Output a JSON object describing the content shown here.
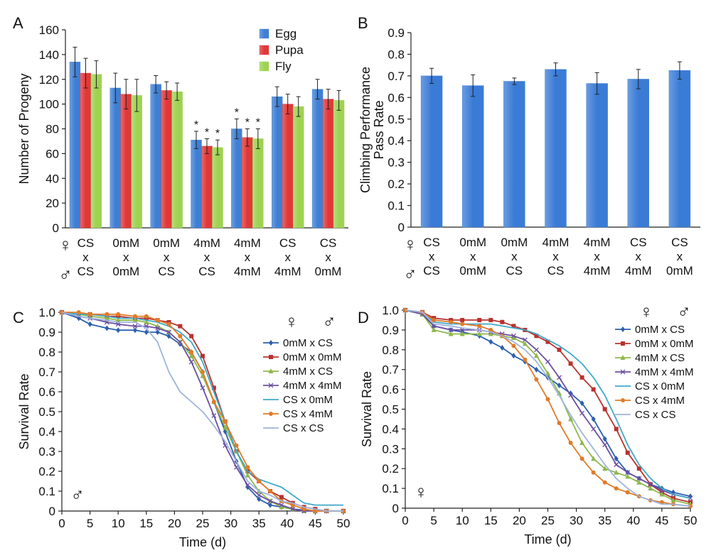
{
  "panels": {
    "A": "A",
    "B": "B",
    "C": "C",
    "D": "D"
  },
  "cross_rows": {
    "female_symbol": "♀",
    "male_symbol": "♂",
    "cross_symbol": "x"
  },
  "colors": {
    "egg": "#3f7fd3",
    "pupa": "#e03838",
    "fly": "#9fd252",
    "climb": "#3a7bd5"
  },
  "chart_data": [
    {
      "id": "A",
      "type": "bar",
      "ylabel": "Number of Progeny",
      "ylim": [
        0,
        160
      ],
      "yticks": [
        0,
        20,
        40,
        60,
        80,
        100,
        120,
        140,
        160
      ],
      "categories": [
        {
          "female": "CS",
          "male": "CS"
        },
        {
          "female": "0mM",
          "male": "0mM"
        },
        {
          "female": "0mM",
          "male": "CS"
        },
        {
          "female": "4mM",
          "male": "CS"
        },
        {
          "female": "4mM",
          "male": "4mM"
        },
        {
          "female": "CS",
          "male": "4mM"
        },
        {
          "female": "CS",
          "male": "0mM"
        }
      ],
      "series": [
        {
          "name": "Egg",
          "values": [
            134,
            113,
            116,
            71,
            80,
            106,
            112
          ],
          "errors": [
            12,
            12,
            7,
            7,
            8,
            8,
            8
          ]
        },
        {
          "name": "Pupa",
          "values": [
            125,
            108,
            111,
            66,
            73,
            100,
            104
          ],
          "errors": [
            12,
            12,
            7,
            6,
            7,
            8,
            8
          ]
        },
        {
          "name": "Fly",
          "values": [
            124,
            107,
            110,
            65,
            72,
            98,
            103
          ],
          "errors": [
            11,
            13,
            7,
            6,
            8,
            8,
            8
          ]
        }
      ],
      "significance": [
        {
          "category_index": 3,
          "series_index": 0,
          "label": "*"
        },
        {
          "category_index": 3,
          "series_index": 1,
          "label": "*"
        },
        {
          "category_index": 3,
          "series_index": 2,
          "label": "*"
        },
        {
          "category_index": 4,
          "series_index": 0,
          "label": "*"
        },
        {
          "category_index": 4,
          "series_index": 1,
          "label": "*"
        },
        {
          "category_index": 4,
          "series_index": 2,
          "label": "*"
        }
      ],
      "legend": "top-right"
    },
    {
      "id": "B",
      "type": "bar",
      "ylabel_lines": [
        "Climbing Performance",
        "Pass Rate"
      ],
      "ylim": [
        0,
        0.9
      ],
      "yticks": [
        0,
        0.1,
        0.2,
        0.3,
        0.4,
        0.5,
        0.6,
        0.7,
        0.8,
        0.9
      ],
      "ytick_labels": [
        "0",
        "0.1",
        "0.2",
        "0.3",
        "0.4",
        "0.5",
        "0.6",
        "0.7",
        "0.8",
        "0.9"
      ],
      "categories": [
        {
          "female": "CS",
          "male": "CS"
        },
        {
          "female": "0mM",
          "male": "0mM"
        },
        {
          "female": "0mM",
          "male": "CS"
        },
        {
          "female": "4mM",
          "male": "CS"
        },
        {
          "female": "4mM",
          "male": "4mM"
        },
        {
          "female": "CS",
          "male": "4mM"
        },
        {
          "female": "CS",
          "male": "0mM"
        }
      ],
      "values": [
        0.7,
        0.655,
        0.675,
        0.73,
        0.665,
        0.685,
        0.725
      ],
      "errors": [
        0.035,
        0.05,
        0.015,
        0.03,
        0.05,
        0.045,
        0.04
      ]
    },
    {
      "id": "C",
      "type": "line",
      "xlabel": "Time (d)",
      "ylabel": "Survival Rate",
      "xlim": [
        0,
        50
      ],
      "ylim": [
        0,
        1.0
      ],
      "xticks": [
        0,
        5,
        10,
        15,
        20,
        25,
        30,
        35,
        40,
        45,
        50
      ],
      "yticks": [
        0,
        0.1,
        0.2,
        0.3,
        0.4,
        0.5,
        0.6,
        0.7,
        0.8,
        0.9,
        1.0
      ],
      "ytick_labels": [
        "0",
        "0.1",
        "0.2",
        "0.3",
        "0.4",
        "0.5",
        "0.6",
        "0.7",
        "0.8",
        "0.9",
        "1.0"
      ],
      "legend_header": {
        "female": "♀",
        "male": "♂"
      },
      "sex_marker": "♂",
      "legend": "top-right",
      "series": [
        {
          "name": "0mM x CS",
          "color": "#2c5fae",
          "marker": "diamond",
          "x": [
            0,
            3,
            5,
            8,
            10,
            13,
            15,
            17,
            19,
            21,
            23,
            25,
            27,
            29,
            31,
            33,
            35,
            37,
            39,
            41,
            43,
            45,
            47,
            50
          ],
          "y": [
            1.0,
            0.97,
            0.94,
            0.92,
            0.91,
            0.91,
            0.9,
            0.9,
            0.88,
            0.84,
            0.8,
            0.7,
            0.55,
            0.4,
            0.25,
            0.12,
            0.06,
            0.03,
            0.02,
            0.01,
            0.005,
            0,
            0,
            0
          ]
        },
        {
          "name": "0mM x 0mM",
          "color": "#b8322e",
          "marker": "square",
          "x": [
            0,
            3,
            5,
            8,
            10,
            13,
            15,
            17,
            19,
            21,
            23,
            25,
            27,
            29,
            31,
            33,
            35,
            37,
            39,
            41,
            43,
            45,
            47,
            50
          ],
          "y": [
            1.0,
            0.99,
            0.99,
            0.98,
            0.98,
            0.97,
            0.97,
            0.96,
            0.95,
            0.93,
            0.88,
            0.78,
            0.62,
            0.45,
            0.3,
            0.2,
            0.15,
            0.1,
            0.07,
            0.04,
            0.02,
            0.01,
            0,
            0
          ]
        },
        {
          "name": "4mM x CS",
          "color": "#8db84a",
          "marker": "triangle",
          "x": [
            0,
            3,
            5,
            8,
            10,
            13,
            15,
            17,
            19,
            21,
            23,
            25,
            27,
            29,
            31,
            33,
            35,
            37,
            39,
            41,
            43,
            45,
            47,
            50
          ],
          "y": [
            1.0,
            0.99,
            0.98,
            0.97,
            0.96,
            0.96,
            0.95,
            0.93,
            0.9,
            0.85,
            0.78,
            0.68,
            0.55,
            0.42,
            0.3,
            0.18,
            0.1,
            0.05,
            0.02,
            0.01,
            0,
            0,
            0,
            0
          ]
        },
        {
          "name": "4mM x 4mM",
          "color": "#6a4ea0",
          "marker": "x",
          "x": [
            0,
            3,
            5,
            8,
            10,
            13,
            15,
            17,
            19,
            21,
            23,
            25,
            27,
            29,
            31,
            33,
            35,
            37,
            39,
            41,
            43,
            45,
            47,
            50
          ],
          "y": [
            1.0,
            0.98,
            0.97,
            0.95,
            0.94,
            0.93,
            0.93,
            0.92,
            0.9,
            0.85,
            0.75,
            0.62,
            0.48,
            0.33,
            0.22,
            0.13,
            0.08,
            0.05,
            0.03,
            0.01,
            0,
            0,
            0,
            0
          ]
        },
        {
          "name": "CS x 0mM",
          "color": "#3fa9c6",
          "marker": "none",
          "x": [
            0,
            3,
            5,
            8,
            10,
            13,
            15,
            17,
            19,
            21,
            23,
            25,
            27,
            29,
            31,
            33,
            35,
            37,
            39,
            41,
            43,
            45,
            47,
            50
          ],
          "y": [
            1.0,
            0.99,
            0.99,
            0.98,
            0.97,
            0.97,
            0.96,
            0.95,
            0.93,
            0.9,
            0.85,
            0.75,
            0.6,
            0.45,
            0.3,
            0.2,
            0.16,
            0.14,
            0.12,
            0.08,
            0.04,
            0.03,
            0.03,
            0.03
          ]
        },
        {
          "name": "CS x 4mM",
          "color": "#e07b29",
          "marker": "circle",
          "x": [
            0,
            3,
            5,
            8,
            10,
            13,
            15,
            17,
            19,
            21,
            23,
            25,
            27,
            29,
            31,
            33,
            35,
            37,
            39,
            41,
            43,
            45,
            47,
            50
          ],
          "y": [
            1.0,
            1.0,
            0.99,
            0.99,
            0.99,
            0.98,
            0.98,
            0.96,
            0.94,
            0.88,
            0.8,
            0.7,
            0.55,
            0.45,
            0.33,
            0.22,
            0.15,
            0.1,
            0.05,
            0.03,
            0.01,
            0,
            0,
            0
          ]
        },
        {
          "name": "CS x CS",
          "color": "#9fb4db",
          "marker": "none",
          "x": [
            0,
            3,
            5,
            8,
            10,
            13,
            15,
            17,
            19,
            21,
            23,
            25,
            27,
            29,
            31,
            33,
            35,
            37,
            39,
            41,
            43,
            45,
            47,
            50
          ],
          "y": [
            1.0,
            0.98,
            0.97,
            0.96,
            0.95,
            0.95,
            0.92,
            0.85,
            0.7,
            0.6,
            0.55,
            0.5,
            0.43,
            0.35,
            0.25,
            0.15,
            0.1,
            0.08,
            0.05,
            0.04,
            0.02,
            0.01,
            0,
            0
          ]
        }
      ]
    },
    {
      "id": "D",
      "type": "line",
      "xlabel": "Time (d)",
      "ylabel": "Survival Rate",
      "xlim": [
        0,
        50
      ],
      "ylim": [
        0,
        1.0
      ],
      "xticks": [
        0,
        5,
        10,
        15,
        20,
        25,
        30,
        35,
        40,
        45,
        50
      ],
      "yticks": [
        0,
        0.1,
        0.2,
        0.3,
        0.4,
        0.5,
        0.6,
        0.7,
        0.8,
        0.9,
        1.0
      ],
      "ytick_labels": [
        "0",
        "0.1",
        "0.2",
        "0.3",
        "0.4",
        "0.5",
        "0.6",
        "0.7",
        "0.8",
        "0.9",
        "1.0"
      ],
      "legend_header": {
        "female": "♀",
        "male": "♂"
      },
      "sex_marker": "♀",
      "legend": "top-right",
      "series": [
        {
          "name": "0mM x CS",
          "color": "#2c5fae",
          "marker": "diamond",
          "x": [
            0,
            3,
            5,
            8,
            10,
            13,
            15,
            17,
            19,
            21,
            23,
            25,
            27,
            29,
            31,
            33,
            35,
            37,
            39,
            41,
            43,
            45,
            47,
            50
          ],
          "y": [
            1.0,
            0.98,
            0.92,
            0.9,
            0.89,
            0.87,
            0.84,
            0.81,
            0.77,
            0.74,
            0.7,
            0.66,
            0.62,
            0.58,
            0.53,
            0.45,
            0.35,
            0.25,
            0.18,
            0.15,
            0.12,
            0.1,
            0.08,
            0.06
          ]
        },
        {
          "name": "0mM x 0mM",
          "color": "#b8322e",
          "marker": "square",
          "x": [
            0,
            3,
            5,
            8,
            10,
            13,
            15,
            17,
            19,
            21,
            23,
            25,
            27,
            29,
            31,
            33,
            35,
            37,
            39,
            41,
            43,
            45,
            47,
            50
          ],
          "y": [
            1.0,
            0.99,
            0.96,
            0.95,
            0.95,
            0.95,
            0.95,
            0.94,
            0.92,
            0.9,
            0.87,
            0.84,
            0.8,
            0.73,
            0.66,
            0.6,
            0.5,
            0.4,
            0.28,
            0.2,
            0.12,
            0.08,
            0.05,
            0.03
          ]
        },
        {
          "name": "4mM x CS",
          "color": "#8db84a",
          "marker": "triangle",
          "x": [
            0,
            3,
            5,
            8,
            10,
            13,
            15,
            17,
            19,
            21,
            23,
            25,
            27,
            29,
            31,
            33,
            35,
            37,
            39,
            41,
            43,
            45,
            47,
            50
          ],
          "y": [
            1.0,
            0.98,
            0.9,
            0.88,
            0.88,
            0.88,
            0.88,
            0.87,
            0.86,
            0.83,
            0.77,
            0.68,
            0.58,
            0.45,
            0.33,
            0.25,
            0.2,
            0.18,
            0.16,
            0.13,
            0.1,
            0.07,
            0.04,
            0.02
          ]
        },
        {
          "name": "4mM x 4mM",
          "color": "#6a4ea0",
          "marker": "x",
          "x": [
            0,
            3,
            5,
            8,
            10,
            13,
            15,
            17,
            19,
            21,
            23,
            25,
            27,
            29,
            31,
            33,
            35,
            37,
            39,
            41,
            43,
            45,
            47,
            50
          ],
          "y": [
            1.0,
            0.98,
            0.92,
            0.9,
            0.9,
            0.9,
            0.89,
            0.88,
            0.87,
            0.85,
            0.8,
            0.74,
            0.66,
            0.57,
            0.48,
            0.4,
            0.32,
            0.22,
            0.18,
            0.15,
            0.12,
            0.09,
            0.07,
            0.05
          ]
        },
        {
          "name": "CS x 0mM",
          "color": "#3fa9c6",
          "marker": "none",
          "x": [
            0,
            3,
            5,
            8,
            10,
            13,
            15,
            17,
            19,
            21,
            23,
            25,
            27,
            29,
            31,
            33,
            35,
            37,
            39,
            41,
            43,
            45,
            47,
            50
          ],
          "y": [
            1.0,
            0.99,
            0.94,
            0.93,
            0.93,
            0.93,
            0.93,
            0.92,
            0.91,
            0.9,
            0.88,
            0.85,
            0.82,
            0.78,
            0.73,
            0.66,
            0.57,
            0.45,
            0.32,
            0.22,
            0.15,
            0.1,
            0.07,
            0.05
          ]
        },
        {
          "name": "CS x 4mM",
          "color": "#e07b29",
          "marker": "circle",
          "x": [
            0,
            3,
            5,
            8,
            10,
            13,
            15,
            17,
            19,
            21,
            23,
            25,
            27,
            29,
            31,
            33,
            35,
            37,
            39,
            41,
            43,
            45,
            47,
            50
          ],
          "y": [
            1.0,
            0.99,
            0.95,
            0.94,
            0.93,
            0.92,
            0.9,
            0.87,
            0.82,
            0.75,
            0.65,
            0.55,
            0.43,
            0.33,
            0.25,
            0.18,
            0.13,
            0.1,
            0.08,
            0.06,
            0.04,
            0.03,
            0.02,
            0.01
          ]
        },
        {
          "name": "CS x CS",
          "color": "#9fb4db",
          "marker": "none",
          "x": [
            0,
            3,
            5,
            8,
            10,
            13,
            15,
            17,
            19,
            21,
            23,
            25,
            27,
            29,
            31,
            33,
            35,
            37,
            39,
            41,
            43,
            45,
            47,
            50
          ],
          "y": [
            1.0,
            0.99,
            0.93,
            0.92,
            0.91,
            0.9,
            0.89,
            0.87,
            0.84,
            0.8,
            0.74,
            0.66,
            0.57,
            0.47,
            0.38,
            0.3,
            0.22,
            0.15,
            0.1,
            0.06,
            0.04,
            0.02,
            0.02,
            0.01
          ]
        }
      ]
    }
  ]
}
